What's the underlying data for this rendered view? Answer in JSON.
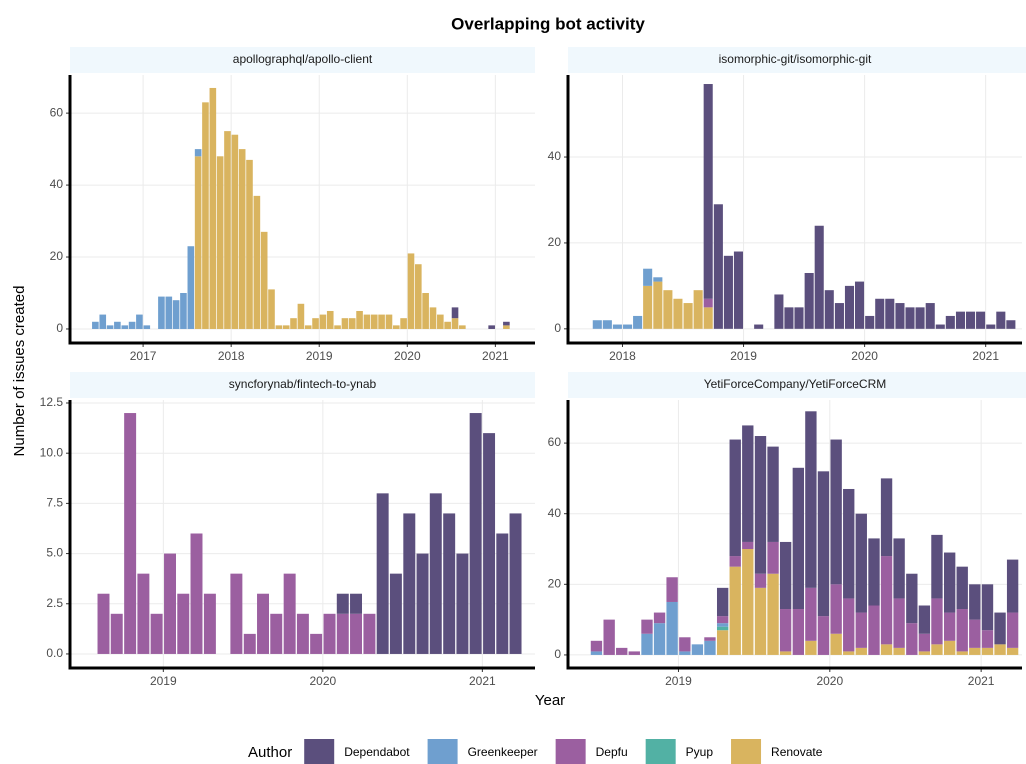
{
  "chart_data": {
    "type": "bar",
    "stacked": true,
    "grid": true,
    "title": "Overlapping bot activity",
    "x_label": "Year",
    "y_label": "Number of issues created",
    "legend": {
      "title": "Author",
      "position": "bottom",
      "entries": [
        {
          "name": "Dependabot",
          "color": "#5b4f7d"
        },
        {
          "name": "Greenkeeper",
          "color": "#6f9fcf"
        },
        {
          "name": "Depfu",
          "color": "#9b5fa0"
        },
        {
          "name": "Pyup",
          "color": "#52b1a4"
        },
        {
          "name": "Renovate",
          "color": "#d9b45f"
        }
      ]
    },
    "panels": [
      {
        "title": "apollographql/apollo-client",
        "xlim": [
          2016.17,
          2021.45
        ],
        "xticks": [
          2017,
          2018,
          2019,
          2020,
          2021
        ],
        "ylim": [
          -3.9,
          70.6
        ],
        "yticks": [
          0,
          20,
          40,
          60
        ],
        "x": [
          2016.458,
          2016.542,
          2016.625,
          2016.708,
          2016.792,
          2016.875,
          2016.958,
          2017.042,
          2017.125,
          2017.208,
          2017.292,
          2017.375,
          2017.458,
          2017.542,
          2017.625,
          2017.708,
          2017.792,
          2017.875,
          2017.958,
          2018.042,
          2018.125,
          2018.208,
          2018.292,
          2018.375,
          2018.458,
          2018.542,
          2018.625,
          2018.708,
          2018.792,
          2018.875,
          2018.958,
          2019.042,
          2019.125,
          2019.208,
          2019.292,
          2019.375,
          2019.458,
          2019.542,
          2019.625,
          2019.708,
          2019.792,
          2019.875,
          2019.958,
          2020.042,
          2020.125,
          2020.208,
          2020.292,
          2020.375,
          2020.458,
          2020.542,
          2020.625,
          2020.708,
          2020.792,
          2020.875,
          2020.958,
          2021.042,
          2021.125
        ],
        "series": [
          {
            "name": "Renovate",
            "values": [
              0,
              0,
              0,
              0,
              0,
              0,
              0,
              0,
              0,
              0,
              0,
              0,
              0,
              0,
              48,
              63,
              67,
              48,
              55,
              54,
              50,
              47,
              37,
              27,
              11,
              1,
              1,
              3,
              7,
              1,
              3,
              4,
              5,
              1,
              3,
              3,
              5,
              4,
              4,
              4,
              4,
              1,
              3,
              21,
              18,
              10,
              6,
              4,
              2,
              3,
              1,
              0,
              0,
              0,
              0,
              0,
              1
            ]
          },
          {
            "name": "Greenkeeper",
            "values": [
              2,
              4,
              1,
              2,
              1,
              2,
              4,
              1,
              0,
              9,
              9,
              8,
              10,
              23,
              2,
              0,
              0,
              0,
              0,
              0,
              0,
              0,
              0,
              0,
              0,
              0,
              0,
              0,
              0,
              0,
              0,
              0,
              0,
              0,
              0,
              0,
              0,
              0,
              0,
              0,
              0,
              0,
              0,
              0,
              0,
              0,
              0,
              0,
              0,
              0,
              0,
              0,
              0,
              0,
              0,
              0,
              0
            ]
          },
          {
            "name": "Dependabot",
            "values": [
              0,
              0,
              0,
              0,
              0,
              0,
              0,
              0,
              0,
              0,
              0,
              0,
              0,
              0,
              0,
              0,
              0,
              0,
              0,
              0,
              0,
              0,
              0,
              0,
              0,
              0,
              0,
              0,
              0,
              0,
              0,
              0,
              0,
              0,
              0,
              0,
              0,
              0,
              0,
              0,
              0,
              0,
              0,
              0,
              0,
              0,
              0,
              0,
              0,
              3,
              0,
              0,
              0,
              0,
              1,
              0,
              1
            ]
          }
        ]
      },
      {
        "title": "isomorphic-git/isomorphic-git",
        "xlim": [
          2017.55,
          2021.3
        ],
        "xticks": [
          2018,
          2019,
          2020,
          2021
        ],
        "ylim": [
          -3.3,
          59.1
        ],
        "yticks": [
          0,
          20,
          40
        ],
        "x": [
          2017.792,
          2017.875,
          2017.958,
          2018.042,
          2018.125,
          2018.208,
          2018.292,
          2018.375,
          2018.458,
          2018.542,
          2018.625,
          2018.708,
          2018.792,
          2018.875,
          2018.958,
          2019.042,
          2019.125,
          2019.208,
          2019.292,
          2019.375,
          2019.458,
          2019.542,
          2019.625,
          2019.708,
          2019.792,
          2019.875,
          2019.958,
          2020.042,
          2020.125,
          2020.208,
          2020.292,
          2020.375,
          2020.458,
          2020.542,
          2020.625,
          2020.708,
          2020.792,
          2020.875,
          2020.958,
          2021.042,
          2021.125,
          2021.208
        ],
        "series": [
          {
            "name": "Renovate",
            "values": [
              0,
              0,
              0,
              0,
              0,
              10,
              11,
              9,
              7,
              6,
              9,
              5,
              0,
              0,
              0,
              0,
              0,
              0,
              0,
              0,
              0,
              0,
              0,
              0,
              0,
              0,
              0,
              0,
              0,
              0,
              0,
              0,
              0,
              0,
              0,
              0,
              0,
              0,
              0,
              0,
              0,
              0
            ]
          },
          {
            "name": "Greenkeeper",
            "values": [
              2,
              2,
              1,
              1,
              3,
              4,
              1,
              0,
              0,
              0,
              0,
              0,
              0,
              0,
              0,
              0,
              0,
              0,
              0,
              0,
              0,
              0,
              0,
              0,
              0,
              0,
              0,
              0,
              0,
              0,
              0,
              0,
              0,
              0,
              0,
              0,
              0,
              0,
              0,
              0,
              0,
              0
            ]
          },
          {
            "name": "Depfu",
            "values": [
              0,
              0,
              0,
              0,
              0,
              0,
              0,
              0,
              0,
              0,
              0,
              2,
              0,
              0,
              0,
              0,
              0,
              0,
              0,
              0,
              0,
              0,
              0,
              0,
              0,
              0,
              0,
              0,
              0,
              0,
              0,
              0,
              0,
              0,
              0,
              0,
              0,
              0,
              0,
              0,
              0,
              0
            ]
          },
          {
            "name": "Dependabot",
            "values": [
              0,
              0,
              0,
              0,
              0,
              0,
              0,
              0,
              0,
              0,
              0,
              50,
              29,
              17,
              18,
              0,
              1,
              0,
              8,
              5,
              5,
              13,
              24,
              9,
              6,
              10,
              11,
              3,
              7,
              7,
              6,
              5,
              5,
              6,
              1,
              3,
              4,
              4,
              4,
              1,
              4,
              2
            ]
          }
        ]
      },
      {
        "title": "syncforynab/fintech-to-ynab",
        "xlim": [
          2018.415,
          2021.33
        ],
        "xticks": [
          2019,
          2020,
          2021
        ],
        "ylim": [
          -0.7,
          12.65
        ],
        "yticks": [
          {
            "value": 0,
            "label": "0.0"
          },
          2.5,
          {
            "value": 5,
            "label": "5.0"
          },
          7.5,
          {
            "value": 10,
            "label": "10.0"
          },
          12.5
        ],
        "x": [
          2018.625,
          2018.708,
          2018.792,
          2018.875,
          2018.958,
          2019.042,
          2019.125,
          2019.208,
          2019.292,
          2019.375,
          2019.458,
          2019.542,
          2019.625,
          2019.708,
          2019.792,
          2019.875,
          2019.958,
          2020.042,
          2020.125,
          2020.208,
          2020.292,
          2020.375,
          2020.458,
          2020.542,
          2020.625,
          2020.708,
          2020.792,
          2020.875,
          2020.958,
          2021.042,
          2021.125,
          2021.208
        ],
        "series": [
          {
            "name": "Depfu",
            "values": [
              3,
              2,
              12,
              4,
              2,
              5,
              3,
              6,
              3,
              0,
              4,
              1,
              3,
              2,
              4,
              2,
              1,
              2,
              2,
              2,
              2,
              0,
              0,
              0,
              0,
              0,
              0,
              0,
              0,
              0,
              0,
              0
            ]
          },
          {
            "name": "Dependabot",
            "values": [
              0,
              0,
              0,
              0,
              0,
              0,
              0,
              0,
              0,
              0,
              0,
              0,
              0,
              0,
              0,
              0,
              0,
              0,
              1,
              1,
              0,
              8,
              4,
              7,
              5,
              8,
              7,
              5,
              12,
              11,
              6,
              7
            ]
          }
        ]
      },
      {
        "title": "YetiForceCompany/YetiForceCRM",
        "xlim": [
          2018.27,
          2021.27
        ],
        "xticks": [
          2019,
          2020,
          2021
        ],
        "ylim": [
          -3.7,
          72.2
        ],
        "yticks": [
          0,
          20,
          40,
          60
        ],
        "x": [
          2018.458,
          2018.542,
          2018.625,
          2018.708,
          2018.792,
          2018.875,
          2018.958,
          2019.042,
          2019.125,
          2019.208,
          2019.292,
          2019.375,
          2019.458,
          2019.542,
          2019.625,
          2019.708,
          2019.792,
          2019.875,
          2019.958,
          2020.042,
          2020.125,
          2020.208,
          2020.292,
          2020.375,
          2020.458,
          2020.542,
          2020.625,
          2020.708,
          2020.792,
          2020.875,
          2020.958,
          2021.042,
          2021.125,
          2021.208
        ],
        "series": [
          {
            "name": "Renovate",
            "values": [
              0,
              0,
              0,
              0,
              0,
              0,
              0,
              0,
              0,
              0,
              7,
              25,
              30,
              19,
              23,
              1,
              0,
              4,
              0,
              6,
              1,
              2,
              0,
              3,
              2,
              0,
              1,
              3,
              4,
              1,
              2,
              2,
              3,
              2
            ]
          },
          {
            "name": "Pyup",
            "values": [
              0,
              0,
              0,
              0,
              0,
              0,
              0,
              0,
              0,
              0,
              1,
              0,
              0,
              0,
              0,
              0,
              0,
              0,
              0,
              0,
              0,
              0,
              0,
              0,
              0,
              0,
              0,
              0,
              0,
              0,
              0,
              0,
              0,
              0
            ]
          },
          {
            "name": "Greenkeeper",
            "values": [
              1,
              0,
              0,
              0,
              6,
              9,
              15,
              1,
              3,
              4,
              1,
              0,
              0,
              0,
              0,
              0,
              0,
              0,
              0,
              0,
              0,
              0,
              0,
              0,
              0,
              0,
              0,
              0,
              0,
              0,
              0,
              0,
              0,
              0
            ]
          },
          {
            "name": "Depfu",
            "values": [
              3,
              10,
              2,
              1,
              4,
              3,
              7,
              4,
              0,
              1,
              2,
              3,
              2,
              4,
              9,
              12,
              13,
              15,
              11,
              14,
              15,
              10,
              14,
              25,
              14,
              9,
              5,
              13,
              8,
              12,
              8,
              5,
              0,
              10
            ]
          },
          {
            "name": "Dependabot",
            "values": [
              0,
              0,
              0,
              0,
              0,
              0,
              0,
              0,
              0,
              0,
              8,
              33,
              33,
              39,
              27,
              19,
              40,
              50,
              41,
              41,
              31,
              28,
              19,
              22,
              17,
              14,
              8,
              18,
              17,
              12,
              10,
              13,
              9,
              15
            ]
          }
        ]
      }
    ]
  }
}
